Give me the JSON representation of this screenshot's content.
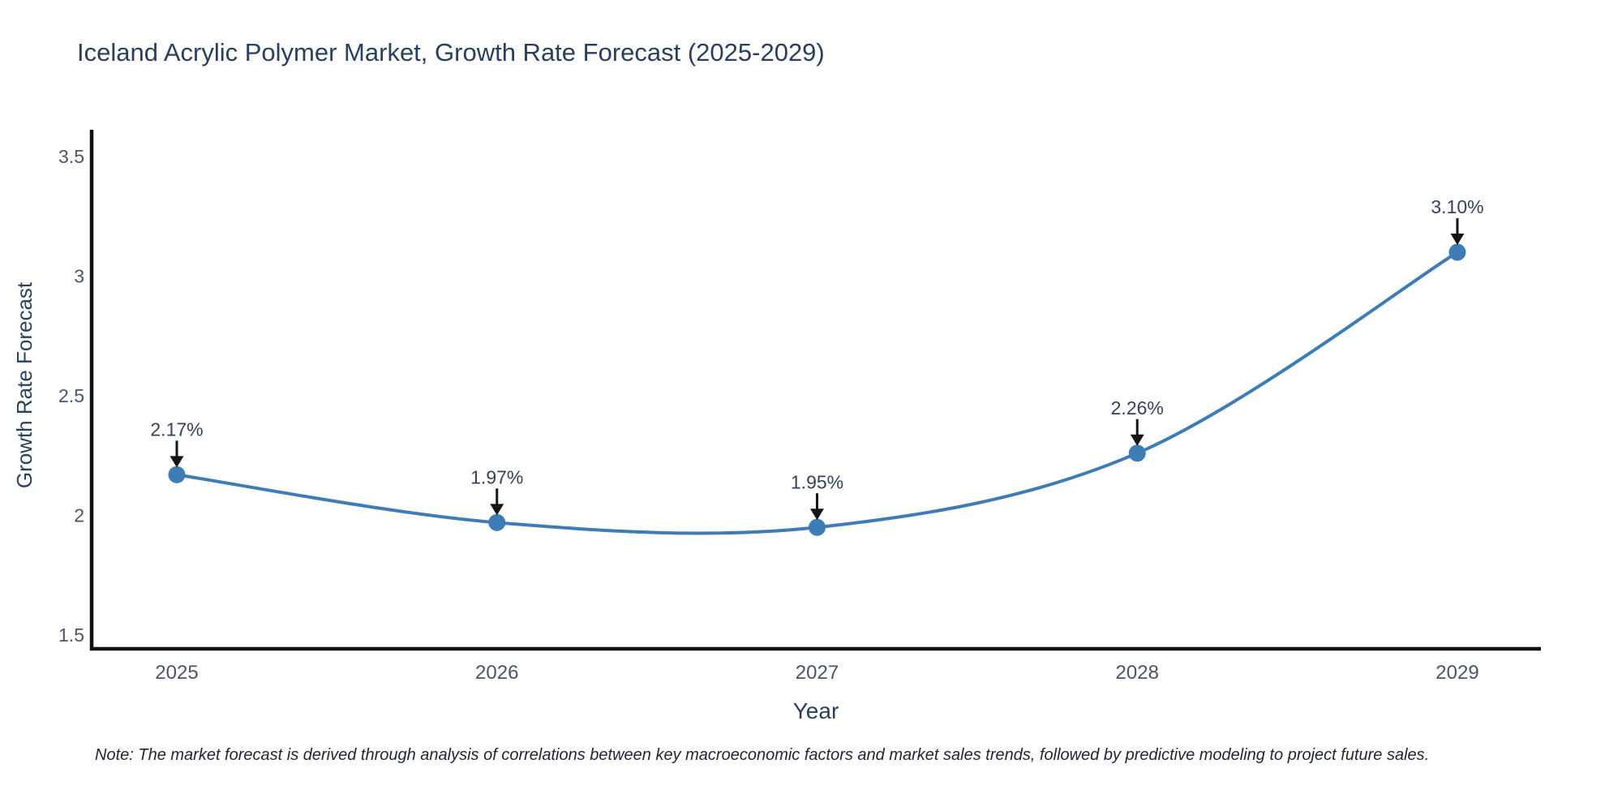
{
  "chart_data": {
    "type": "line",
    "title": "Iceland Acrylic Polymer Market, Growth Rate Forecast (2025-2029)",
    "xlabel": "Year",
    "ylabel": "Growth Rate Forecast",
    "categories": [
      "2025",
      "2026",
      "2027",
      "2028",
      "2029"
    ],
    "series": [
      {
        "name": "Growth Rate Forecast",
        "values": [
          2.17,
          1.97,
          1.95,
          2.26,
          3.1
        ],
        "point_labels": [
          "2.17%",
          "1.97%",
          "1.95%",
          "2.26%",
          "3.10%"
        ]
      }
    ],
    "y_ticks": [
      1.5,
      2,
      2.5,
      3,
      3.5
    ],
    "y_tick_labels": [
      "1.5",
      "2",
      "2.5",
      "3",
      "3.5"
    ],
    "ylim": [
      1.44,
      3.61
    ],
    "line_shape": "spline",
    "grid": false,
    "legend_position": "none",
    "annotations_style": "arrow-down-to-point",
    "colors": {
      "line": "#3d7cb5",
      "marker": "#3d7cb5",
      "axis": "#111111",
      "title_text": "#2a3f5f",
      "axis_title_text": "#2a3f5f",
      "tick_text": "#4a5568",
      "annotation_text": "#36415a",
      "arrow": "#151515",
      "note_text": "#202733",
      "background": "#ffffff"
    },
    "note": "Note: The market forecast is derived through analysis of correlations between key macroeconomic factors and market sales trends, followed by predictive modeling to project future sales."
  }
}
